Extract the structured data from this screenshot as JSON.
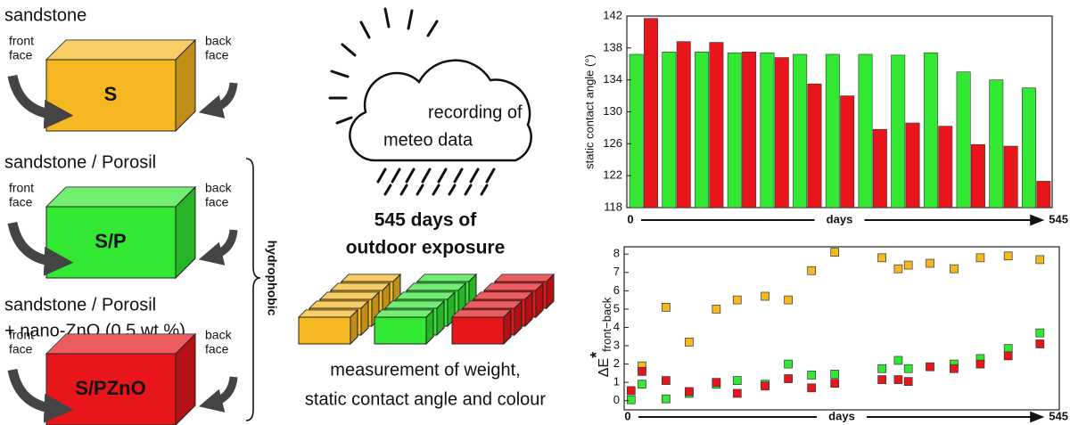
{
  "diagram": {
    "samples": [
      {
        "title": [
          "sandstone"
        ],
        "code": "S",
        "front": [
          "front",
          "face"
        ],
        "back": [
          "back",
          "face"
        ]
      },
      {
        "title": [
          "sandstone / Porosil"
        ],
        "code": "S/P",
        "front": [
          "front",
          "face"
        ],
        "back": [
          "back",
          "face"
        ]
      },
      {
        "title": [
          "sandstone / Porosil",
          "+ nano-ZnO (0.5 wt.%)"
        ],
        "code": "S/PZnO",
        "front": [
          "front",
          "face"
        ],
        "back": [
          "back",
          "face"
        ]
      }
    ],
    "hydrophobic": "hydrophobic",
    "weather": [
      "recording of",
      "meteo data"
    ],
    "exposure": [
      "545 days of",
      "outdoor exposure"
    ],
    "measurement": [
      "measurement of weight,",
      "static contact angle and colour"
    ]
  },
  "chart_data": [
    {
      "type": "bar",
      "y_label": "static contact angle (°)",
      "x_label": "days",
      "categories": [
        null,
        null,
        null,
        null,
        null,
        null,
        null,
        null,
        null,
        null,
        null,
        null,
        null
      ],
      "series": [
        {
          "color": "#33e833",
          "values": [
            137.2,
            137.5,
            137.5,
            137.4,
            137.4,
            137.2,
            137.2,
            137.2,
            137.1,
            137.4,
            135,
            134,
            133
          ]
        },
        {
          "color": "#e8161b",
          "values": [
            141.7,
            138.8,
            138.7,
            137.5,
            136.8,
            133.5,
            132,
            127.8,
            128.6,
            128.2,
            125.9,
            125.7,
            121.3
          ]
        }
      ],
      "ylim": [
        118,
        142
      ],
      "yticks": [
        118,
        122,
        126,
        130,
        134,
        138,
        142
      ],
      "xticks": [
        0,
        545
      ]
    },
    {
      "type": "scatter",
      "y_label": {
        "main": "ΔE",
        "sup": "*",
        "sub": "front−back"
      },
      "x_label": "days",
      "x": [
        1,
        15,
        46,
        76,
        111,
        138,
        174,
        204,
        234,
        264,
        325,
        346,
        359,
        387,
        418,
        452,
        488,
        529
      ],
      "series": [
        {
          "color": "#f5b820",
          "values": [
            null,
            1.9,
            5.1,
            3.2,
            5.0,
            5.5,
            5.7,
            5.5,
            7.1,
            8.1,
            7.8,
            7.2,
            7.4,
            7.5,
            7.2,
            7.8,
            7.9,
            7.7
          ]
        },
        {
          "color": "#33e833",
          "values": [
            0.05,
            0.9,
            0.1,
            0.4,
            0.9,
            1.1,
            0.9,
            2.0,
            1.4,
            1.45,
            1.75,
            2.2,
            1.75,
            null,
            2.0,
            2.3,
            2.85,
            3.7
          ]
        },
        {
          "color": "#e8161b",
          "values": [
            0.55,
            1.6,
            1.1,
            0.5,
            1.0,
            0.4,
            0.8,
            1.2,
            0.7,
            0.95,
            1.15,
            1.15,
            1.05,
            1.85,
            1.75,
            2.0,
            2.45,
            3.1
          ]
        }
      ],
      "xlim": [
        -8,
        554
      ],
      "xticks": [
        0,
        545
      ],
      "ylim": [
        -0.5,
        8.4
      ],
      "yticks": [
        0,
        1,
        2,
        3,
        4,
        5,
        6,
        7,
        8
      ]
    }
  ]
}
